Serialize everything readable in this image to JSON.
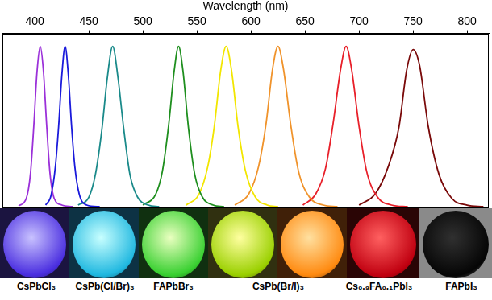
{
  "chart_data": {
    "type": "line",
    "x_label": "Wavelength (nm)",
    "xlim": [
      370,
      820
    ],
    "xticks": [
      400,
      450,
      500,
      550,
      600,
      650,
      700,
      750,
      800
    ],
    "ylim": [
      0,
      1.08
    ],
    "tick_labels": "x",
    "grid": false,
    "series": [
      {
        "color": "#9b30d9",
        "x": [
          385,
          392,
          396,
          399,
          402,
          405,
          408,
          411,
          414,
          418,
          425,
          435
        ],
        "values": [
          0.005,
          0.05,
          0.21,
          0.5,
          0.84,
          1,
          0.84,
          0.5,
          0.21,
          0.05,
          0.01,
          0
        ]
      },
      {
        "color": "#1a1adb",
        "x": [
          410,
          415,
          419,
          422,
          425,
          428,
          431,
          434,
          437,
          441,
          448,
          460
        ],
        "values": [
          0.01,
          0.07,
          0.25,
          0.5,
          0.82,
          1,
          0.82,
          0.5,
          0.25,
          0.08,
          0.01,
          0
        ]
      },
      {
        "color": "#1a8a8a",
        "x": [
          440,
          450,
          456,
          462,
          467,
          472,
          477,
          482,
          488,
          495,
          505,
          515
        ],
        "values": [
          0.01,
          0.06,
          0.2,
          0.48,
          0.8,
          1,
          0.8,
          0.5,
          0.2,
          0.06,
          0.01,
          0
        ]
      },
      {
        "color": "#1f8f1f",
        "x": [
          500,
          512,
          518,
          524,
          529,
          533,
          537,
          542,
          548,
          555,
          565,
          575
        ],
        "values": [
          0.01,
          0.08,
          0.22,
          0.52,
          0.85,
          1,
          0.85,
          0.5,
          0.2,
          0.06,
          0.01,
          0
        ]
      },
      {
        "color": "#f2e600",
        "x": [
          540,
          552,
          560,
          566,
          572,
          577,
          582,
          588,
          595,
          604,
          615,
          625
        ],
        "values": [
          0.01,
          0.08,
          0.25,
          0.5,
          0.85,
          1,
          0.85,
          0.5,
          0.22,
          0.06,
          0.01,
          0
        ]
      },
      {
        "color": "#f0932b",
        "x": [
          585,
          598,
          607,
          614,
          620,
          625,
          630,
          637,
          644,
          654,
          667,
          680
        ],
        "values": [
          0.01,
          0.08,
          0.25,
          0.52,
          0.86,
          1,
          0.86,
          0.5,
          0.22,
          0.06,
          0.01,
          0
        ]
      },
      {
        "color": "#e8202a",
        "x": [
          648,
          660,
          669,
          676,
          683,
          688,
          693,
          700,
          707,
          717,
          730,
          745
        ],
        "values": [
          0.01,
          0.08,
          0.24,
          0.52,
          0.86,
          1,
          0.86,
          0.5,
          0.22,
          0.06,
          0.01,
          0
        ]
      },
      {
        "color": "#7a0a0a",
        "x": [
          700,
          715,
          727,
          737,
          744,
          750,
          756,
          764,
          774,
          786,
          800,
          815
        ],
        "values": [
          0.01,
          0.08,
          0.25,
          0.5,
          0.85,
          0.98,
          0.88,
          0.5,
          0.2,
          0.05,
          0.01,
          0
        ]
      }
    ],
    "sample_labels": [
      "CsPbCl₃",
      "CsPb(Cl/Br)₃",
      "FAPbBr₃",
      "CsPb(Br/I)₃",
      "Cs₀.₉FA₀.₁PbI₃",
      "FAPbI₃"
    ]
  }
}
